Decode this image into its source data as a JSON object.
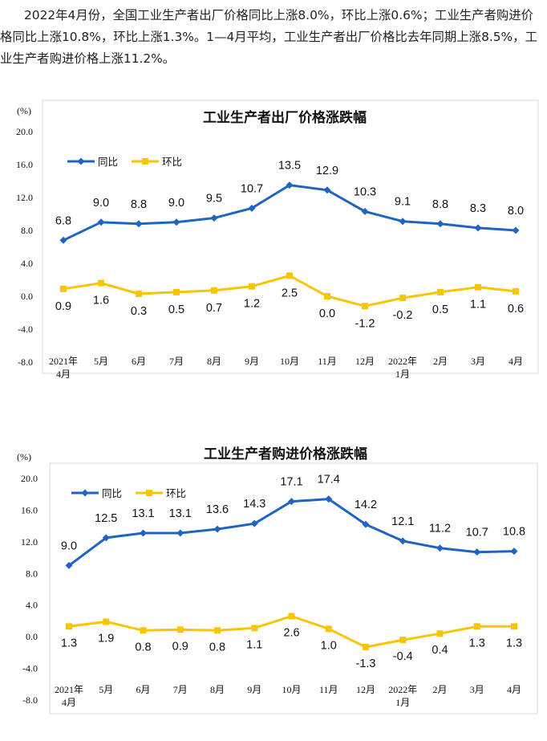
{
  "intro": "2022年4月份，全国工业生产者出厂价格同比上涨8.0%，环比上涨0.6%；工业生产者购进价格同比上涨10.8%，环比上涨1.3%。1—4月平均，工业生产者出厂价格比去年同期上涨8.5%，工业生产者购进价格上涨11.2%。",
  "colors": {
    "yoy": "#1f64c2",
    "mom": "#f7c600"
  },
  "chart_data": [
    {
      "type": "line",
      "title": "工业生产者出厂价格涨跌幅",
      "ylabel": "(%)",
      "ylim": [
        -8.0,
        20.0
      ],
      "yticks": [
        "20.0",
        "16.0",
        "12.0",
        "8.0",
        "4.0",
        "0.0",
        "-4.0",
        "-8.0"
      ],
      "categories": [
        [
          "2021年",
          "4月"
        ],
        [
          "5月"
        ],
        [
          "6月"
        ],
        [
          "7月"
        ],
        [
          "8月"
        ],
        [
          "9月"
        ],
        [
          "10月"
        ],
        [
          "11月"
        ],
        [
          "12月"
        ],
        [
          "2022年",
          "1月"
        ],
        [
          "2月"
        ],
        [
          "3月"
        ],
        [
          "4月"
        ]
      ],
      "legend_position": "top-left",
      "grid": false,
      "series": [
        {
          "name": "同比",
          "color": "#1f64c2",
          "values": [
            6.8,
            9.0,
            8.8,
            9.0,
            9.5,
            10.7,
            13.5,
            12.9,
            10.3,
            9.1,
            8.8,
            8.3,
            8.0
          ],
          "labels": [
            "6.8",
            "9.0",
            "8.8",
            "9.0",
            "9.5",
            "10.7",
            "13.5",
            "12.9",
            "10.3",
            "9.1",
            "8.8",
            "8.3",
            "8.0"
          ]
        },
        {
          "name": "环比",
          "color": "#f7c600",
          "values": [
            0.9,
            1.6,
            0.3,
            0.5,
            0.7,
            1.2,
            2.5,
            0.0,
            -1.2,
            -0.2,
            0.5,
            1.1,
            0.6
          ],
          "labels": [
            "0.9",
            "1.6",
            "0.3",
            "0.5",
            "0.7",
            "1.2",
            "2.5",
            "0.0",
            "-1.2",
            "-0.2",
            "0.5",
            "1.1",
            "0.6"
          ]
        }
      ]
    },
    {
      "type": "line",
      "title": "工业生产者购进价格涨跌幅",
      "ylabel": "(%)",
      "ylim": [
        -8.0,
        20.0
      ],
      "yticks": [
        "20.0",
        "16.0",
        "12.0",
        "8.0",
        "4.0",
        "0.0",
        "-4.0",
        "-8.0"
      ],
      "categories": [
        [
          "2021年",
          "4月"
        ],
        [
          "5月"
        ],
        [
          "6月"
        ],
        [
          "7月"
        ],
        [
          "8月"
        ],
        [
          "9月"
        ],
        [
          "10月"
        ],
        [
          "11月"
        ],
        [
          "12月"
        ],
        [
          "2022年",
          "1月"
        ],
        [
          "2月"
        ],
        [
          "3月"
        ],
        [
          "4月"
        ]
      ],
      "legend_position": "top-left",
      "grid": false,
      "series": [
        {
          "name": "同比",
          "color": "#1f64c2",
          "values": [
            9.0,
            12.5,
            13.1,
            13.1,
            13.6,
            14.3,
            17.1,
            17.4,
            14.2,
            12.1,
            11.2,
            10.7,
            10.8
          ],
          "labels": [
            "9.0",
            "12.5",
            "13.1",
            "13.1",
            "13.6",
            "14.3",
            "17.1",
            "17.4",
            "14.2",
            "12.1",
            "11.2",
            "10.7",
            "10.8"
          ]
        },
        {
          "name": "环比",
          "color": "#f7c600",
          "values": [
            1.3,
            1.9,
            0.8,
            0.9,
            0.8,
            1.1,
            2.6,
            1.0,
            -1.3,
            -0.4,
            0.4,
            1.3,
            1.3
          ],
          "labels": [
            "1.3",
            "1.9",
            "0.8",
            "0.9",
            "0.8",
            "1.1",
            "2.6",
            "1.0",
            "-1.3",
            "-0.4",
            "0.4",
            "1.3",
            "1.3"
          ]
        }
      ]
    }
  ]
}
